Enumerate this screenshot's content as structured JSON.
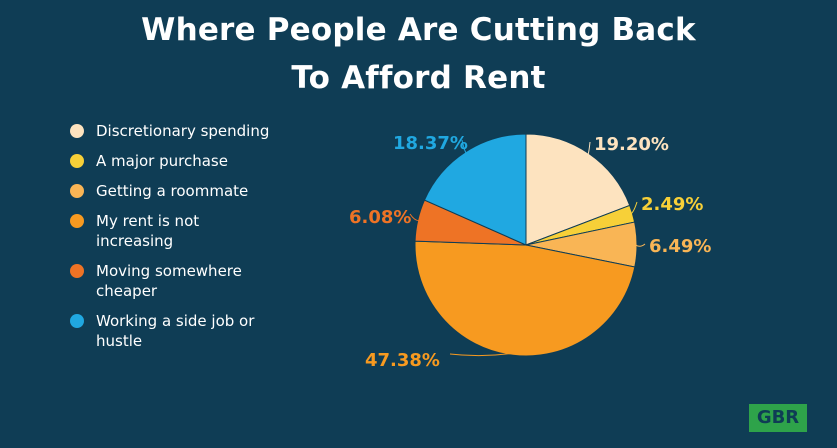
{
  "chart_data": {
    "type": "pie",
    "title_lines": [
      "Where People Are Cutting Back",
      "To Afford Rent"
    ],
    "legend_position": "left",
    "slices": [
      {
        "label": "Discretionary spending",
        "value": 19.2,
        "value_label": "19.20%",
        "color": "#fde3bf",
        "label_color": "#fde3bf"
      },
      {
        "label": "A major purchase",
        "value": 2.49,
        "value_label": "2.49%",
        "color": "#f7d038",
        "label_color": "#f7d038"
      },
      {
        "label": "Getting a roommate",
        "value": 6.49,
        "value_label": "6.49%",
        "color": "#f9b555",
        "label_color": "#f9b555"
      },
      {
        "label": "My rent is not increasing",
        "value": 47.38,
        "value_label": "47.38%",
        "color": "#f79a20",
        "label_color": "#f79a20"
      },
      {
        "label": "Moving somewhere cheaper",
        "value": 6.08,
        "value_label": "6.08%",
        "color": "#ee7325",
        "label_color": "#ee7325"
      },
      {
        "label": "Working a side job or hustle",
        "value": 18.37,
        "value_label": "18.37%",
        "color": "#20a8e1",
        "label_color": "#20a8e1"
      }
    ]
  },
  "logo": {
    "text": "GBR",
    "color": "#2ea34a"
  }
}
